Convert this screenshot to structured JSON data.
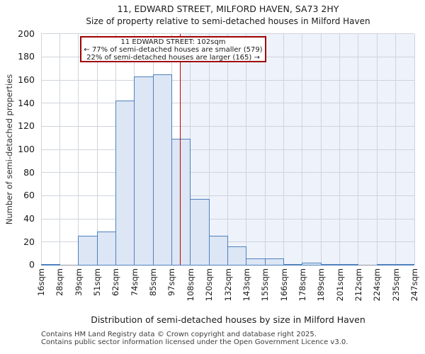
{
  "chart_data": {
    "type": "bar",
    "title": "11, EDWARD STREET, MILFORD HAVEN, SA73 2HY",
    "subtitle": "Size of property relative to semi-detached houses in Milford Haven",
    "xlabel": "Distribution of semi-detached houses by size in Milford Haven",
    "ylabel": "Number of semi-detached properties",
    "x_tick_labels": [
      "16sqm",
      "28sqm",
      "39sqm",
      "51sqm",
      "62sqm",
      "74sqm",
      "85sqm",
      "97sqm",
      "108sqm",
      "120sqm",
      "132sqm",
      "143sqm",
      "155sqm",
      "166sqm",
      "178sqm",
      "189sqm",
      "201sqm",
      "212sqm",
      "224sqm",
      "235sqm",
      "247sqm"
    ],
    "values": [
      1,
      0,
      25,
      29,
      142,
      163,
      165,
      109,
      57,
      25,
      16,
      6,
      6,
      1,
      2,
      1,
      1,
      0,
      1,
      1
    ],
    "y_ticks": [
      0,
      20,
      40,
      60,
      80,
      100,
      120,
      140,
      160,
      180,
      200
    ],
    "ylim": [
      0,
      200
    ],
    "grid": true,
    "legend": null,
    "marker": {
      "value": 102,
      "unit": "sqm"
    },
    "annotation": {
      "lines": [
        "11 EDWARD STREET: 102sqm",
        "← 77% of semi-detached houses are smaller (579)",
        "22% of semi-detached houses are larger (165) →"
      ]
    },
    "colors": {
      "bar_fill": "#dce6f4",
      "bar_edge": "#4f81bd",
      "marker_line": "#c00000",
      "annotation_border": "#a00000",
      "shade_right_of_marker": "#eef2fb",
      "gridline": "#cfd4db",
      "axis_line": "#8f96a1"
    }
  },
  "footer": {
    "line1": "Contains HM Land Registry data © Crown copyright and database right 2025.",
    "line2": "Contains public sector information licensed under the Open Government Licence v3.0."
  }
}
